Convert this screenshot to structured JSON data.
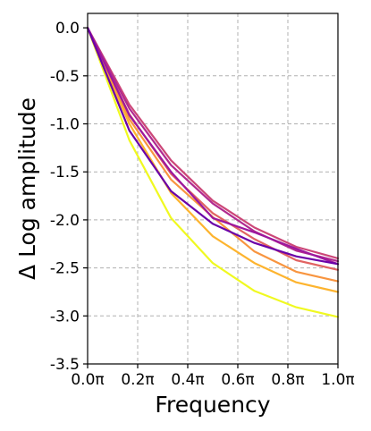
{
  "chart_data": {
    "type": "line",
    "title": "",
    "xlabel": "Frequency",
    "ylabel": "Δ Log amplitude",
    "x_unit": "π",
    "xlim": [
      0.0,
      1.0
    ],
    "ylim": [
      -3.5,
      0.15
    ],
    "x_ticks": [
      0.0,
      0.2,
      0.4,
      0.6,
      0.8,
      1.0
    ],
    "x_tick_labels": [
      "0.0π",
      "0.2π",
      "0.4π",
      "0.6π",
      "0.8π",
      "1.0π"
    ],
    "y_ticks": [
      0.0,
      -0.5,
      -1.0,
      -1.5,
      -2.0,
      -2.5,
      -3.0,
      -3.5
    ],
    "y_tick_labels": [
      "0.0",
      "-0.5",
      "-1.0",
      "-1.5",
      "-2.0",
      "-2.5",
      "-3.0",
      "-3.5"
    ],
    "grid": true,
    "legend": "none",
    "x": [
      0.0,
      0.1667,
      0.3333,
      0.5,
      0.6667,
      0.8333,
      1.0
    ],
    "series": [
      {
        "color": "#f0f921",
        "values": [
          0.0,
          -1.17,
          -1.98,
          -2.45,
          -2.74,
          -2.91,
          -3.01
        ]
      },
      {
        "color": "#fdb42f",
        "values": [
          0.0,
          -1.0,
          -1.72,
          -2.17,
          -2.45,
          -2.65,
          -2.75
        ]
      },
      {
        "color": "#f89540",
        "values": [
          0.0,
          -0.95,
          -1.58,
          -1.97,
          -2.33,
          -2.54,
          -2.64
        ]
      },
      {
        "color": "#e16462",
        "values": [
          0.0,
          -0.9,
          -1.52,
          -1.93,
          -2.2,
          -2.42,
          -2.52
        ]
      },
      {
        "color": "#cc4778",
        "values": [
          0.0,
          -0.8,
          -1.38,
          -1.8,
          -2.08,
          -2.28,
          -2.4
        ]
      },
      {
        "color": "#b12a90",
        "values": [
          0.0,
          -0.84,
          -1.43,
          -1.83,
          -2.12,
          -2.32,
          -2.43
        ]
      },
      {
        "color": "#9c179e",
        "values": [
          0.0,
          -0.91,
          -1.5,
          -1.98,
          -2.13,
          -2.3,
          -2.46
        ]
      },
      {
        "color": "#6a00a8",
        "values": [
          0.0,
          -1.07,
          -1.7,
          -2.04,
          -2.24,
          -2.38,
          -2.46
        ]
      }
    ]
  }
}
